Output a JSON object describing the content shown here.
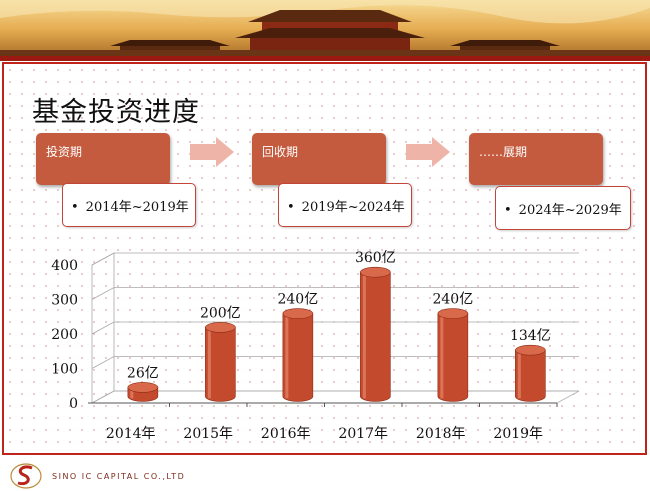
{
  "slide": {
    "title": "基金投资进度",
    "phases": [
      {
        "label": "投资期",
        "period": "2014年~2019年"
      },
      {
        "label": "回收期",
        "period": "2019年~2024年"
      },
      {
        "label": "……展期",
        "period": "2024年~2029年"
      }
    ]
  },
  "footer": {
    "company": "SINO IC CAPITAL CO.,LTD"
  },
  "colors": {
    "bar": "#c44a2e",
    "phase": "#c45a3e",
    "frame": "#c0231a"
  },
  "chart_data": {
    "type": "bar",
    "categories": [
      "2014年",
      "2015年",
      "2016年",
      "2017年",
      "2018年",
      "2019年"
    ],
    "values": [
      26,
      200,
      240,
      360,
      240,
      134
    ],
    "data_labels": [
      "26亿",
      "200亿",
      "240亿",
      "360亿",
      "240亿",
      "134亿"
    ],
    "yticks": [
      "0",
      "100",
      "200",
      "300",
      "400"
    ],
    "ylim": [
      0,
      400
    ],
    "style": "3d-cylinder",
    "grid": true
  }
}
